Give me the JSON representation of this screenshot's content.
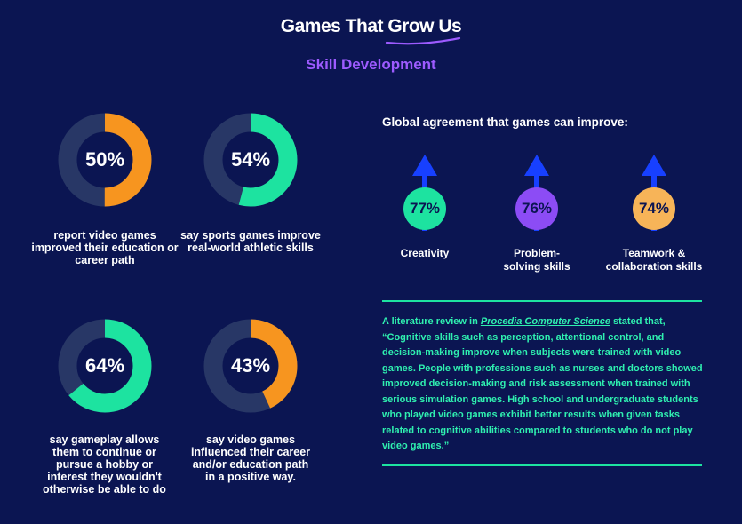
{
  "header": {
    "title": "Games That Grow Us",
    "subtitle": "Skill Development"
  },
  "colors": {
    "background": "#0b1552",
    "track": "#283766",
    "orange": "#f7951f",
    "green": "#1de3a0",
    "purple": "#8c4cf5",
    "peach": "#f7b458",
    "arrow": "#1740ff",
    "subtitle": "#9d5bff",
    "rule": "#1de3a0",
    "quote_text": "#2ff0b0"
  },
  "stats": [
    {
      "pct_label": "50%",
      "value": 50,
      "color": "orange",
      "caption": "report video games improved their education or career path"
    },
    {
      "pct_label": "54%",
      "value": 54,
      "color": "green",
      "caption": "say sports games improve real-world athletic skills"
    },
    {
      "pct_label": "64%",
      "value": 64,
      "color": "green",
      "caption": "say gameplay allows them to continue or pursue a hobby or interest they wouldn't otherwise be able to do"
    },
    {
      "pct_label": "43%",
      "value": 43,
      "color": "orange",
      "caption": "say video games influenced their career and/or education path in a positive way."
    }
  ],
  "agreement": {
    "heading": "Global agreement that games can improve:",
    "items": [
      {
        "pct_label": "77%",
        "value": 77,
        "color": "green",
        "label": "Creativity"
      },
      {
        "pct_label": "76%",
        "value": 76,
        "color": "purple",
        "label": "Problem-solving skills"
      },
      {
        "pct_label": "74%",
        "value": 74,
        "color": "peach",
        "label": "Teamwork & collaboration skills"
      }
    ]
  },
  "quote": {
    "intro": "A literature review in ",
    "source": "Procedia Computer Science",
    "after_source": " stated that,",
    "body": "“Cognitive skills such as perception, attentional control, and decision-making improve when subjects were trained with video games. People with professions such as nurses and doctors showed improved decision-making and risk assessment when trained with serious simulation games. High school and undergraduate students who played video games exhibit better results when given tasks related to cognitive abilities compared to students who do not play video games.”"
  },
  "chart_data": [
    {
      "type": "pie",
      "variant": "donut-set",
      "categories": [
        "report video games improved their education or career path",
        "say sports games improve real-world athletic skills",
        "say gameplay allows them to continue or pursue a hobby or interest they wouldn't otherwise be able to do",
        "say video games influenced their career and/or education path in a positive way."
      ],
      "values": [
        50,
        54,
        64,
        43
      ]
    },
    {
      "type": "bar",
      "variant": "icon-stat",
      "title": "Global agreement that games can improve:",
      "categories": [
        "Creativity",
        "Problem-solving skills",
        "Teamwork & collaboration skills"
      ],
      "values": [
        77,
        76,
        74
      ]
    }
  ]
}
